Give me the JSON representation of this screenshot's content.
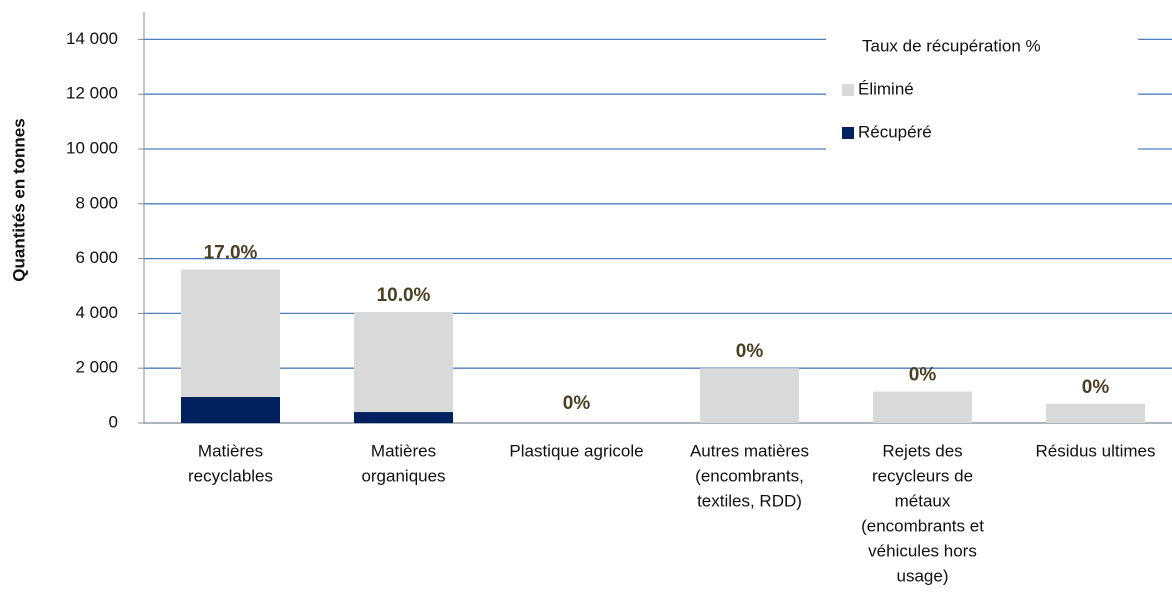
{
  "chart_data": {
    "type": "stacked_bar",
    "y_label": "Quantités en tonnes",
    "categories": [
      [
        "Matières",
        "recyclables"
      ],
      [
        "Matières",
        "organiques"
      ],
      [
        "Plastique agricole"
      ],
      [
        "Autres matières",
        "(encombrants,",
        "textiles, RDD)"
      ],
      [
        "Rejets des",
        "recycleurs de",
        "métaux",
        "(encombrants et",
        "véhicules hors",
        "usage)"
      ],
      [
        "Résidus ultimes"
      ]
    ],
    "series": [
      {
        "name": "Taux de récupération %",
        "values": [
          17,
          10,
          0,
          0,
          0,
          0
        ],
        "value_labels": [
          "17.0%",
          "10.0%",
          "0%",
          "0%",
          "0%",
          "0%"
        ],
        "label_color": "#4a3f22"
      },
      {
        "name": "Éliminé",
        "color": "#d9d9d9",
        "values": [
          4650,
          3650,
          0,
          2000,
          1150,
          700
        ]
      },
      {
        "name": "Récupéré",
        "color": "#002060",
        "values": [
          950,
          400,
          0,
          0,
          0,
          0
        ]
      }
    ],
    "ylim": [
      0,
      15000
    ],
    "yticks": [
      0,
      {
        "value": 2000,
        "label": "2 000"
      },
      {
        "value": 4000,
        "label": "4 000"
      },
      {
        "value": 6000,
        "label": "6 000"
      },
      {
        "value": 8000,
        "label": "8 000"
      },
      {
        "value": 10000,
        "label": "10 000"
      },
      {
        "value": 12000,
        "label": "12 000"
      },
      {
        "value": 14000,
        "label": "14 000"
      }
    ],
    "grid": true,
    "grid_color": "#4f7fbd",
    "legend": "upper right"
  }
}
